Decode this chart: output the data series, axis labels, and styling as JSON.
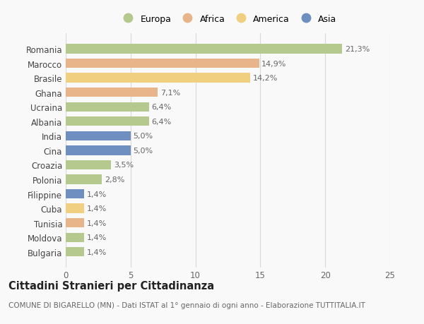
{
  "countries": [
    "Romania",
    "Marocco",
    "Brasile",
    "Ghana",
    "Ucraina",
    "Albania",
    "India",
    "Cina",
    "Croazia",
    "Polonia",
    "Filippine",
    "Cuba",
    "Tunisia",
    "Moldova",
    "Bulgaria"
  ],
  "values": [
    21.3,
    14.9,
    14.2,
    7.1,
    6.4,
    6.4,
    5.0,
    5.0,
    3.5,
    2.8,
    1.4,
    1.4,
    1.4,
    1.4,
    1.4
  ],
  "labels": [
    "21,3%",
    "14,9%",
    "14,2%",
    "7,1%",
    "6,4%",
    "6,4%",
    "5,0%",
    "5,0%",
    "3,5%",
    "2,8%",
    "1,4%",
    "1,4%",
    "1,4%",
    "1,4%",
    "1,4%"
  ],
  "colors": [
    "#b5c98e",
    "#e8b48a",
    "#f0d080",
    "#e8b48a",
    "#b5c98e",
    "#b5c98e",
    "#6e8fc0",
    "#6e8fc0",
    "#b5c98e",
    "#b5c98e",
    "#6e8fc0",
    "#f0d080",
    "#e8b48a",
    "#b5c98e",
    "#b5c98e"
  ],
  "legend_labels": [
    "Europa",
    "Africa",
    "America",
    "Asia"
  ],
  "legend_colors": [
    "#b5c98e",
    "#e8b48a",
    "#f0d080",
    "#6e8fc0"
  ],
  "xlim": [
    0,
    25
  ],
  "xticks": [
    0,
    5,
    10,
    15,
    20,
    25
  ],
  "title": "Cittadini Stranieri per Cittadinanza",
  "subtitle": "COMUNE DI BIGARELLO (MN) - Dati ISTAT al 1° gennaio di ogni anno - Elaborazione TUTTITALIA.IT",
  "background_color": "#f9f9f9",
  "grid_color": "#d8d8d8",
  "bar_height": 0.65,
  "label_fontsize": 8,
  "ytick_fontsize": 8.5,
  "xtick_fontsize": 8.5,
  "legend_fontsize": 9,
  "title_fontsize": 10.5,
  "subtitle_fontsize": 7.5
}
